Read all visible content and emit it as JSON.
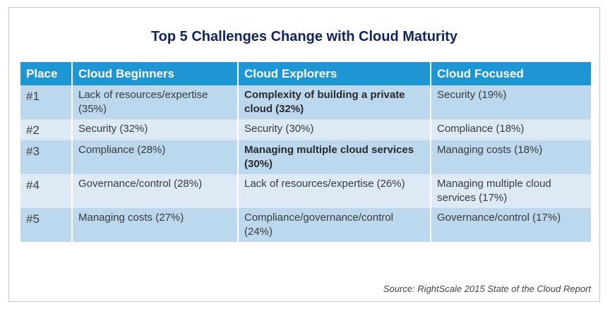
{
  "title": "Top 5 Challenges Change with Cloud Maturity",
  "headers": [
    "Place",
    "Cloud Beginners",
    "Cloud Explorers",
    "Cloud Focused"
  ],
  "rows": [
    {
      "place": "#1",
      "beginners": "Lack of resources/expertise (35%)",
      "explorers": "Complexity of building a private cloud (32%)",
      "explorers_bold": true,
      "focused": "Security (19%)"
    },
    {
      "place": "#2",
      "beginners": "Security (32%)",
      "explorers": "Security (30%)",
      "explorers_bold": false,
      "focused": "Compliance (18%)"
    },
    {
      "place": "#3",
      "beginners": "Compliance (28%)",
      "explorers": "Managing multiple cloud services (30%)",
      "explorers_bold": true,
      "focused": "Managing costs (18%)"
    },
    {
      "place": "#4",
      "beginners": "Governance/control (28%)",
      "explorers": "Lack of resources/expertise (26%)",
      "explorers_bold": false,
      "focused": "Managing multiple cloud services (17%)"
    },
    {
      "place": "#5",
      "beginners": "Managing costs (27%)",
      "explorers": "Compliance/governance/control (24%)",
      "explorers_bold": false,
      "focused": "Governance/control (17%)"
    }
  ],
  "source": "Source: RightScale 2015 State of the Cloud Report",
  "colors": {
    "header_bg": "#1e96d3",
    "row_odd": "#bcd8ef",
    "row_even": "#dde9f5",
    "title": "#0f2660"
  }
}
